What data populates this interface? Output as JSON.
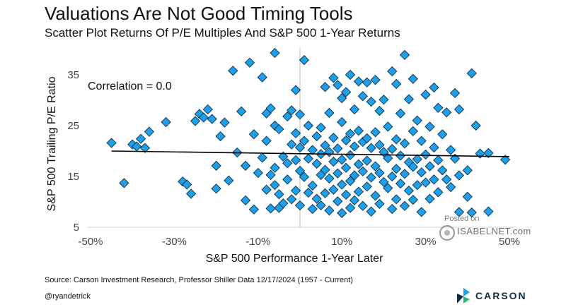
{
  "header": {
    "title": "Valuations Are Not Good Timing Tools",
    "subtitle": "Scatter Plot Returns Of P/E Multiples And S&P 500 1-Year Returns"
  },
  "footer": {
    "source": "Source: Carson Investment Research, Professor Shiller Data 12/17/2024 (1957 - Current)",
    "handle": "@ryandetrick",
    "brand": "CARSON"
  },
  "watermark": {
    "posted": "Posted on",
    "site": "ISABELNET.com"
  },
  "colors": {
    "marker_fill": "#1e9fe8",
    "marker_edge": "#0c2f4c",
    "trendline": "#000000",
    "brand": "#0e2a47"
  },
  "chart_data": {
    "type": "scatter",
    "title": "Valuations Are Not Good Timing Tools",
    "subtitle": "Scatter Plot Returns Of P/E Multiples And S&P 500 1-Year Returns",
    "xlabel": "S&P 500 Performance 1-Year Later",
    "ylabel": "S&P 500 Trailing P/E Ratio",
    "xlim": [
      -50,
      50
    ],
    "ylim": [
      5,
      40
    ],
    "x_ticks": [
      -50,
      -30,
      -10,
      10,
      30,
      50
    ],
    "x_tick_labels": [
      "-50%",
      "-30%",
      "-10%",
      "10%",
      "30%",
      "50%"
    ],
    "y_ticks": [
      5,
      15,
      25,
      35
    ],
    "y_tick_labels": [
      "5",
      "15",
      "25",
      "35"
    ],
    "zero_line_x": 0,
    "annotation": "Correlation = 0.0",
    "trendline": {
      "x": [
        -45,
        50
      ],
      "y": [
        20.0,
        18.9
      ]
    },
    "grid": false,
    "points": [
      [
        -45,
        21.6
      ],
      [
        -42,
        13.7
      ],
      [
        -40,
        21.3
      ],
      [
        -39,
        20.9
      ],
      [
        -38,
        22.4
      ],
      [
        -37,
        20.6
      ],
      [
        -36,
        23.8
      ],
      [
        -32,
        25.7
      ],
      [
        -28,
        14.0
      ],
      [
        -27,
        13.4
      ],
      [
        -26,
        11.6
      ],
      [
        -25,
        25.9
      ],
      [
        -24,
        27.3
      ],
      [
        -23,
        26.6
      ],
      [
        -22,
        28.2
      ],
      [
        -21,
        26.3
      ],
      [
        -20,
        17.1
      ],
      [
        -20,
        12.6
      ],
      [
        -19,
        22.9
      ],
      [
        -18,
        25.6
      ],
      [
        -17,
        14.2
      ],
      [
        -16,
        35.8
      ],
      [
        -15,
        19.7
      ],
      [
        -14,
        27.8
      ],
      [
        -13,
        17.1
      ],
      [
        -13,
        10.3
      ],
      [
        -12,
        37.4
      ],
      [
        -11,
        23.3
      ],
      [
        -11,
        8.5
      ],
      [
        -10,
        15.7
      ],
      [
        -9,
        34.5
      ],
      [
        -9,
        18.7
      ],
      [
        -8,
        27.4
      ],
      [
        -8,
        22.0
      ],
      [
        -8,
        12.4
      ],
      [
        -7,
        28.4
      ],
      [
        -7,
        15.3
      ],
      [
        -7,
        8.7
      ],
      [
        -6,
        39.3
      ],
      [
        -6,
        25.0
      ],
      [
        -6,
        16.7
      ],
      [
        -6,
        13.3
      ],
      [
        -5,
        24.3
      ],
      [
        -5,
        11.5
      ],
      [
        -5,
        8.8
      ],
      [
        -4,
        18.9
      ],
      [
        -4,
        9.7
      ],
      [
        -3,
        26.8
      ],
      [
        -3,
        17.6
      ],
      [
        -3,
        14.4
      ],
      [
        -2,
        28.0
      ],
      [
        -2,
        21.3
      ],
      [
        -2,
        10.5
      ],
      [
        -1,
        32.0
      ],
      [
        -1,
        23.5
      ],
      [
        -1,
        18.2
      ],
      [
        -1,
        12.2
      ],
      [
        0,
        27.2
      ],
      [
        0,
        20.7
      ],
      [
        0,
        16.1
      ],
      [
        0,
        9.3
      ],
      [
        1,
        37.9
      ],
      [
        1,
        22.0
      ],
      [
        1,
        14.9
      ],
      [
        2,
        25.0
      ],
      [
        2,
        18.5
      ],
      [
        2,
        11.8
      ],
      [
        3,
        20.2
      ],
      [
        3,
        13.2
      ],
      [
        3,
        8.6
      ],
      [
        4,
        22.9
      ],
      [
        4,
        17.5
      ],
      [
        4,
        10.6
      ],
      [
        5,
        24.6
      ],
      [
        5,
        19.4
      ],
      [
        5,
        15.3
      ],
      [
        5,
        9.3
      ],
      [
        6,
        32.6
      ],
      [
        6,
        21.1
      ],
      [
        6,
        16.3
      ],
      [
        6,
        11.7
      ],
      [
        7,
        27.5
      ],
      [
        7,
        19.8
      ],
      [
        7,
        14.6
      ],
      [
        7,
        8.3
      ],
      [
        8,
        34.4
      ],
      [
        8,
        22.6
      ],
      [
        8,
        17.9
      ],
      [
        8,
        12.4
      ],
      [
        9,
        33.0
      ],
      [
        9,
        20.5
      ],
      [
        9,
        15.6
      ],
      [
        9,
        10.1
      ],
      [
        10,
        30.4
      ],
      [
        10,
        25.7
      ],
      [
        10,
        18.3
      ],
      [
        10,
        13.4
      ],
      [
        10,
        7.8
      ],
      [
        11,
        31.6
      ],
      [
        11,
        22.1
      ],
      [
        11,
        16.7
      ],
      [
        11,
        11.4
      ],
      [
        12,
        35.0
      ],
      [
        12,
        23.4
      ],
      [
        12,
        19.2
      ],
      [
        12,
        14.1
      ],
      [
        12,
        8.8
      ],
      [
        13,
        28.2
      ],
      [
        13,
        20.9
      ],
      [
        13,
        15.2
      ],
      [
        13,
        10.3
      ],
      [
        14,
        33.7
      ],
      [
        14,
        24.0
      ],
      [
        14,
        17.4
      ],
      [
        14,
        12.0
      ],
      [
        15,
        30.8
      ],
      [
        15,
        21.8
      ],
      [
        15,
        16.0
      ],
      [
        15,
        9.2
      ],
      [
        16,
        33.5
      ],
      [
        16,
        22.5
      ],
      [
        16,
        18.1
      ],
      [
        16,
        13.0
      ],
      [
        17,
        29.7
      ],
      [
        17,
        20.6
      ],
      [
        17,
        14.8
      ],
      [
        17,
        8.1
      ],
      [
        18,
        34.0
      ],
      [
        18,
        23.7
      ],
      [
        18,
        17.0
      ],
      [
        18,
        11.2
      ],
      [
        19,
        27.9
      ],
      [
        19,
        21.2
      ],
      [
        19,
        15.7
      ],
      [
        19,
        9.6
      ],
      [
        20,
        30.1
      ],
      [
        20,
        19.8
      ],
      [
        20,
        13.9
      ],
      [
        21,
        24.8
      ],
      [
        21,
        18.6
      ],
      [
        21,
        12.7
      ],
      [
        22,
        35.7
      ],
      [
        22,
        20.4
      ],
      [
        22,
        15.0
      ],
      [
        22,
        8.6
      ],
      [
        23,
        33.2
      ],
      [
        23,
        22.3
      ],
      [
        23,
        16.5
      ],
      [
        23,
        10.5
      ],
      [
        24,
        27.4
      ],
      [
        24,
        19.1
      ],
      [
        24,
        13.6
      ],
      [
        25,
        38.9
      ],
      [
        25,
        21.5
      ],
      [
        25,
        15.5
      ],
      [
        25,
        9.2
      ],
      [
        26,
        30.2
      ],
      [
        26,
        17.8
      ],
      [
        26,
        12.2
      ],
      [
        27,
        34.2
      ],
      [
        27,
        23.9
      ],
      [
        27,
        16.9
      ],
      [
        27,
        10.4
      ],
      [
        28,
        26.0
      ],
      [
        28,
        18.4
      ],
      [
        28,
        13.3
      ],
      [
        29,
        22.0
      ],
      [
        29,
        15.8
      ],
      [
        29,
        8.0
      ],
      [
        30,
        31.1
      ],
      [
        30,
        19.3
      ],
      [
        30,
        13.8
      ],
      [
        31,
        24.8
      ],
      [
        31,
        17.0
      ],
      [
        31,
        10.6
      ],
      [
        32,
        32.5
      ],
      [
        32,
        20.7
      ],
      [
        32,
        14.4
      ],
      [
        33,
        28.5
      ],
      [
        33,
        18.2
      ],
      [
        33,
        11.9
      ],
      [
        34,
        23.3
      ],
      [
        34,
        16.2
      ],
      [
        35,
        27.6
      ],
      [
        35,
        14.4
      ],
      [
        36,
        20.2
      ],
      [
        36,
        12.9
      ],
      [
        37,
        31.4
      ],
      [
        37,
        18.5
      ],
      [
        38,
        28.2
      ],
      [
        38,
        15.2
      ],
      [
        38,
        8.0
      ],
      [
        40,
        16.2
      ],
      [
        40,
        11.0
      ],
      [
        41,
        35.3
      ],
      [
        41,
        7.9
      ],
      [
        42,
        25.0
      ],
      [
        43,
        19.5
      ],
      [
        45,
        19.6
      ],
      [
        45,
        8.1
      ],
      [
        49,
        18.3
      ]
    ]
  }
}
